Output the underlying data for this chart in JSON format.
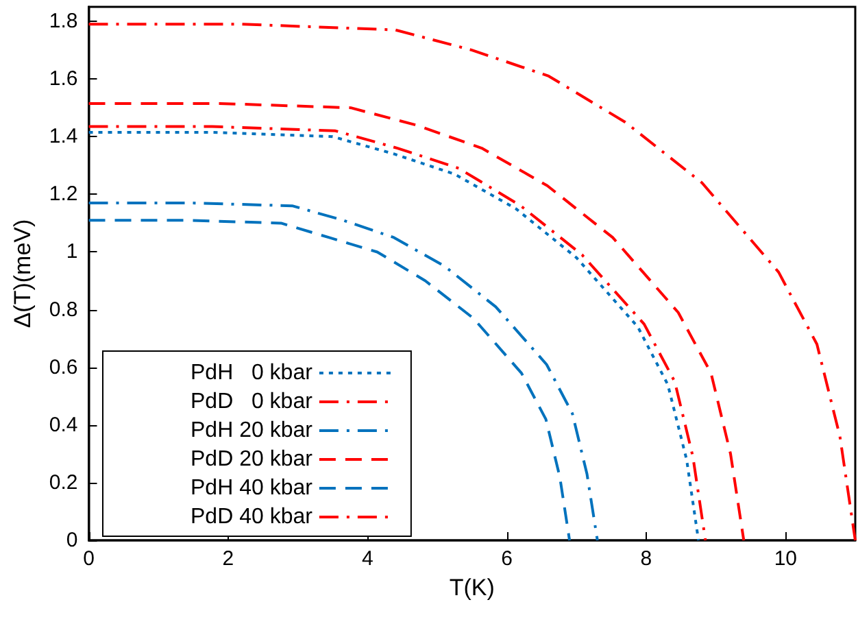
{
  "chart_data": {
    "type": "line",
    "xlabel": "T(K)",
    "ylabel": "Δ(T)(meV)",
    "xlim": [
      0,
      11
    ],
    "xticks": [
      0,
      2,
      4,
      6,
      8,
      10
    ],
    "ylim": [
      0,
      1.85
    ],
    "yticks": [
      0,
      0.2,
      0.4,
      0.6,
      0.8,
      1,
      1.2,
      1.4,
      1.6,
      1.8
    ],
    "grid": false,
    "legend": "bottom left",
    "marker": "none",
    "series": [
      {
        "name": "PdH   0 kbar",
        "color": "#0072bd",
        "line_style": "dotted",
        "x": [
          0,
          1.75,
          3.5,
          4.38,
          5.25,
          6.13,
          7.0,
          7.88,
          8.31,
          8.58,
          8.75
        ],
        "values": [
          1.415,
          1.415,
          1.4,
          1.34,
          1.27,
          1.15,
          0.98,
          0.74,
          0.54,
          0.28,
          0
        ]
      },
      {
        "name": "PdD   0 kbar",
        "color": "#ff0000",
        "line_style": "dashdot",
        "x": [
          0,
          2.2,
          4.4,
          5.5,
          6.6,
          7.7,
          8.8,
          9.9,
          10.45,
          10.78,
          11
        ],
        "values": [
          1.79,
          1.79,
          1.77,
          1.7,
          1.61,
          1.45,
          1.24,
          0.93,
          0.68,
          0.36,
          0
        ]
      },
      {
        "name": "PdH 20 kbar",
        "color": "#0072bd",
        "line_style": "dashdot",
        "x": [
          0,
          1.46,
          2.92,
          3.65,
          4.38,
          5.11,
          5.84,
          6.57,
          6.94,
          7.15,
          7.3
        ],
        "values": [
          1.17,
          1.17,
          1.16,
          1.11,
          1.05,
          0.95,
          0.81,
          0.61,
          0.44,
          0.23,
          0
        ]
      },
      {
        "name": "PdD 20 kbar",
        "color": "#ff0000",
        "line_style": "dashed",
        "x": [
          0,
          1.88,
          3.76,
          4.7,
          5.64,
          6.58,
          7.52,
          8.46,
          8.93,
          9.21,
          9.4
        ],
        "values": [
          1.515,
          1.515,
          1.5,
          1.44,
          1.36,
          1.23,
          1.05,
          0.79,
          0.58,
          0.3,
          0
        ]
      },
      {
        "name": "PdH 40 kbar",
        "color": "#0072bd",
        "line_style": "dashed",
        "x": [
          0,
          1.38,
          2.76,
          3.45,
          4.14,
          4.83,
          5.52,
          6.21,
          6.56,
          6.76,
          6.9
        ],
        "values": [
          1.11,
          1.11,
          1.1,
          1.05,
          1.0,
          0.9,
          0.77,
          0.58,
          0.42,
          0.22,
          0
        ]
      },
      {
        "name": "PdD 40 kbar",
        "color": "#ff0000",
        "line_style": "dashdot",
        "x": [
          0,
          1.77,
          3.54,
          4.43,
          5.31,
          6.2,
          7.08,
          7.97,
          8.41,
          8.67,
          8.85
        ],
        "values": [
          1.435,
          1.435,
          1.42,
          1.36,
          1.29,
          1.16,
          0.99,
          0.75,
          0.55,
          0.29,
          0
        ]
      }
    ]
  }
}
